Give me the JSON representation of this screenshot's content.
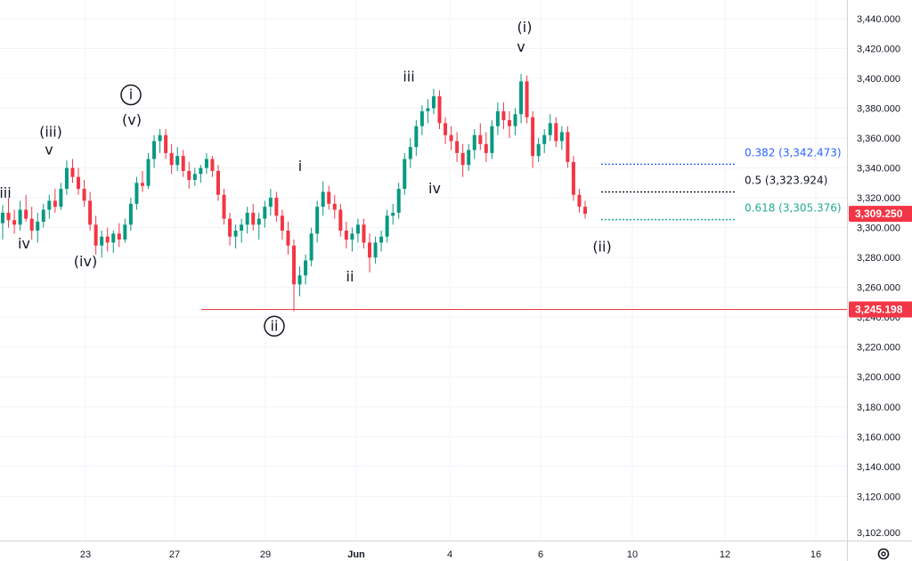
{
  "chart_data": {
    "type": "candlestick",
    "y_axis": {
      "range": [
        3095,
        3455
      ],
      "ticks": [
        3440,
        3420,
        3400,
        3380,
        3360,
        3340,
        3320,
        3300,
        3280,
        3260,
        3240,
        3220,
        3200,
        3180,
        3160,
        3140,
        3120
      ],
      "tick_labels": [
        "3,440.000",
        "3,420.000",
        "3,400.000",
        "3,380.000",
        "3,360.000",
        "3,340.000",
        "3,320.000",
        "3,300.000",
        "3,280.000",
        "3,260.000",
        "3,240.000",
        "3,220.000",
        "3,200.000",
        "3,180.000",
        "3,160.000",
        "3,140.000",
        "3,120.000"
      ],
      "bottom_label": "3,102.000"
    },
    "x_axis": {
      "labels": [
        "23",
        "27",
        "29",
        "Jun",
        "4",
        "6",
        "10",
        "12",
        "16"
      ]
    },
    "price_tags": [
      {
        "label": "3,309.250",
        "value": 3309.25,
        "color": "#f23645"
      },
      {
        "label": "3,245.198",
        "value": 3245.198,
        "color": "#f23645"
      }
    ],
    "horizontal_lines": [
      {
        "value": 3245.198,
        "color": "#f23645"
      }
    ],
    "fib_levels": [
      {
        "ratio": "0.382",
        "value": 3342.473,
        "label": "0.382 (3,342.473)",
        "color": "#2962ff"
      },
      {
        "ratio": "0.5",
        "value": 3323.924,
        "label": "0.5 (3,323.924)",
        "color": "#131722"
      },
      {
        "ratio": "0.618",
        "value": 3305.376,
        "label": "0.618 (3,305.376)",
        "color": "#22ab94"
      }
    ],
    "wave_labels": [
      {
        "text": "iii",
        "price": 3320
      },
      {
        "text": "iv",
        "price": 3286
      },
      {
        "text": "(iii)",
        "price": 3361
      },
      {
        "text": "v",
        "price": 3349
      },
      {
        "text": "(iv)",
        "price": 3274
      },
      {
        "text": "i",
        "price": 3386,
        "circled": true
      },
      {
        "text": "(v)",
        "price": 3369
      },
      {
        "text": "ii",
        "price": 3231,
        "circled": true
      },
      {
        "text": "i",
        "price": 3338
      },
      {
        "text": "ii",
        "price": 3264
      },
      {
        "text": "iii",
        "price": 3398
      },
      {
        "text": "iv",
        "price": 3323
      },
      {
        "text": "(i)",
        "price": 3431
      },
      {
        "text": "v",
        "price": 3418
      },
      {
        "text": "(ii)",
        "price": 3284
      }
    ],
    "candles": [
      {
        "o": 3303,
        "h": 3315,
        "l": 3292,
        "c": 3310
      },
      {
        "o": 3310,
        "h": 3320,
        "l": 3300,
        "c": 3305
      },
      {
        "o": 3305,
        "h": 3312,
        "l": 3296,
        "c": 3302
      },
      {
        "o": 3302,
        "h": 3318,
        "l": 3298,
        "c": 3312
      },
      {
        "o": 3312,
        "h": 3322,
        "l": 3304,
        "c": 3306
      },
      {
        "o": 3306,
        "h": 3314,
        "l": 3292,
        "c": 3298
      },
      {
        "o": 3298,
        "h": 3310,
        "l": 3290,
        "c": 3304
      },
      {
        "o": 3304,
        "h": 3316,
        "l": 3300,
        "c": 3312
      },
      {
        "o": 3312,
        "h": 3322,
        "l": 3306,
        "c": 3318
      },
      {
        "o": 3318,
        "h": 3326,
        "l": 3310,
        "c": 3314
      },
      {
        "o": 3314,
        "h": 3330,
        "l": 3312,
        "c": 3326
      },
      {
        "o": 3326,
        "h": 3345,
        "l": 3322,
        "c": 3340
      },
      {
        "o": 3340,
        "h": 3346,
        "l": 3330,
        "c": 3334
      },
      {
        "o": 3334,
        "h": 3340,
        "l": 3322,
        "c": 3326
      },
      {
        "o": 3326,
        "h": 3332,
        "l": 3314,
        "c": 3318
      },
      {
        "o": 3318,
        "h": 3324,
        "l": 3298,
        "c": 3302
      },
      {
        "o": 3302,
        "h": 3308,
        "l": 3282,
        "c": 3288
      },
      {
        "o": 3288,
        "h": 3298,
        "l": 3280,
        "c": 3294
      },
      {
        "o": 3294,
        "h": 3300,
        "l": 3284,
        "c": 3290
      },
      {
        "o": 3290,
        "h": 3298,
        "l": 3283,
        "c": 3296
      },
      {
        "o": 3296,
        "h": 3303,
        "l": 3287,
        "c": 3292
      },
      {
        "o": 3292,
        "h": 3306,
        "l": 3290,
        "c": 3302
      },
      {
        "o": 3302,
        "h": 3320,
        "l": 3298,
        "c": 3316
      },
      {
        "o": 3316,
        "h": 3334,
        "l": 3312,
        "c": 3330
      },
      {
        "o": 3330,
        "h": 3338,
        "l": 3324,
        "c": 3328
      },
      {
        "o": 3328,
        "h": 3350,
        "l": 3326,
        "c": 3346
      },
      {
        "o": 3346,
        "h": 3362,
        "l": 3340,
        "c": 3358
      },
      {
        "o": 3358,
        "h": 3366,
        "l": 3350,
        "c": 3362
      },
      {
        "o": 3362,
        "h": 3366,
        "l": 3346,
        "c": 3350
      },
      {
        "o": 3350,
        "h": 3356,
        "l": 3336,
        "c": 3342
      },
      {
        "o": 3342,
        "h": 3354,
        "l": 3338,
        "c": 3348
      },
      {
        "o": 3348,
        "h": 3352,
        "l": 3334,
        "c": 3338
      },
      {
        "o": 3338,
        "h": 3344,
        "l": 3326,
        "c": 3332
      },
      {
        "o": 3332,
        "h": 3340,
        "l": 3328,
        "c": 3336
      },
      {
        "o": 3336,
        "h": 3342,
        "l": 3330,
        "c": 3340
      },
      {
        "o": 3340,
        "h": 3350,
        "l": 3336,
        "c": 3346
      },
      {
        "o": 3346,
        "h": 3348,
        "l": 3334,
        "c": 3338
      },
      {
        "o": 3338,
        "h": 3342,
        "l": 3318,
        "c": 3322
      },
      {
        "o": 3322,
        "h": 3326,
        "l": 3302,
        "c": 3306
      },
      {
        "o": 3306,
        "h": 3310,
        "l": 3288,
        "c": 3294
      },
      {
        "o": 3294,
        "h": 3302,
        "l": 3286,
        "c": 3298
      },
      {
        "o": 3298,
        "h": 3306,
        "l": 3290,
        "c": 3302
      },
      {
        "o": 3302,
        "h": 3314,
        "l": 3296,
        "c": 3310
      },
      {
        "o": 3310,
        "h": 3316,
        "l": 3298,
        "c": 3302
      },
      {
        "o": 3302,
        "h": 3310,
        "l": 3292,
        "c": 3306
      },
      {
        "o": 3306,
        "h": 3318,
        "l": 3300,
        "c": 3314
      },
      {
        "o": 3314,
        "h": 3326,
        "l": 3308,
        "c": 3320
      },
      {
        "o": 3320,
        "h": 3324,
        "l": 3304,
        "c": 3308
      },
      {
        "o": 3308,
        "h": 3312,
        "l": 3292,
        "c": 3298
      },
      {
        "o": 3298,
        "h": 3304,
        "l": 3282,
        "c": 3288
      },
      {
        "o": 3288,
        "h": 3292,
        "l": 3244,
        "c": 3262
      },
      {
        "o": 3262,
        "h": 3274,
        "l": 3254,
        "c": 3268
      },
      {
        "o": 3268,
        "h": 3282,
        "l": 3262,
        "c": 3278
      },
      {
        "o": 3278,
        "h": 3300,
        "l": 3274,
        "c": 3296
      },
      {
        "o": 3296,
        "h": 3318,
        "l": 3290,
        "c": 3314
      },
      {
        "o": 3314,
        "h": 3331,
        "l": 3308,
        "c": 3324
      },
      {
        "o": 3324,
        "h": 3328,
        "l": 3312,
        "c": 3316
      },
      {
        "o": 3316,
        "h": 3322,
        "l": 3306,
        "c": 3312
      },
      {
        "o": 3312,
        "h": 3316,
        "l": 3294,
        "c": 3298
      },
      {
        "o": 3298,
        "h": 3304,
        "l": 3286,
        "c": 3292
      },
      {
        "o": 3292,
        "h": 3300,
        "l": 3284,
        "c": 3296
      },
      {
        "o": 3296,
        "h": 3306,
        "l": 3290,
        "c": 3302
      },
      {
        "o": 3302,
        "h": 3306,
        "l": 3286,
        "c": 3290
      },
      {
        "o": 3290,
        "h": 3296,
        "l": 3270,
        "c": 3280
      },
      {
        "o": 3280,
        "h": 3294,
        "l": 3276,
        "c": 3290
      },
      {
        "o": 3290,
        "h": 3298,
        "l": 3284,
        "c": 3294
      },
      {
        "o": 3294,
        "h": 3312,
        "l": 3290,
        "c": 3308
      },
      {
        "o": 3308,
        "h": 3316,
        "l": 3302,
        "c": 3310
      },
      {
        "o": 3310,
        "h": 3330,
        "l": 3306,
        "c": 3326
      },
      {
        "o": 3326,
        "h": 3350,
        "l": 3322,
        "c": 3346
      },
      {
        "o": 3346,
        "h": 3360,
        "l": 3340,
        "c": 3354
      },
      {
        "o": 3354,
        "h": 3372,
        "l": 3348,
        "c": 3368
      },
      {
        "o": 3368,
        "h": 3382,
        "l": 3362,
        "c": 3378
      },
      {
        "o": 3378,
        "h": 3386,
        "l": 3370,
        "c": 3380
      },
      {
        "o": 3380,
        "h": 3393,
        "l": 3376,
        "c": 3388
      },
      {
        "o": 3388,
        "h": 3392,
        "l": 3366,
        "c": 3370
      },
      {
        "o": 3370,
        "h": 3374,
        "l": 3356,
        "c": 3362
      },
      {
        "o": 3362,
        "h": 3368,
        "l": 3352,
        "c": 3358
      },
      {
        "o": 3358,
        "h": 3364,
        "l": 3344,
        "c": 3350
      },
      {
        "o": 3350,
        "h": 3356,
        "l": 3334,
        "c": 3342
      },
      {
        "o": 3342,
        "h": 3356,
        "l": 3338,
        "c": 3352
      },
      {
        "o": 3352,
        "h": 3366,
        "l": 3346,
        "c": 3362
      },
      {
        "o": 3362,
        "h": 3370,
        "l": 3352,
        "c": 3356
      },
      {
        "o": 3356,
        "h": 3364,
        "l": 3344,
        "c": 3350
      },
      {
        "o": 3350,
        "h": 3372,
        "l": 3346,
        "c": 3368
      },
      {
        "o": 3368,
        "h": 3384,
        "l": 3362,
        "c": 3378
      },
      {
        "o": 3378,
        "h": 3384,
        "l": 3366,
        "c": 3372
      },
      {
        "o": 3372,
        "h": 3378,
        "l": 3360,
        "c": 3368
      },
      {
        "o": 3368,
        "h": 3380,
        "l": 3362,
        "c": 3376
      },
      {
        "o": 3376,
        "h": 3403,
        "l": 3370,
        "c": 3398
      },
      {
        "o": 3398,
        "h": 3402,
        "l": 3370,
        "c": 3374
      },
      {
        "o": 3374,
        "h": 3378,
        "l": 3340,
        "c": 3348
      },
      {
        "o": 3348,
        "h": 3360,
        "l": 3344,
        "c": 3356
      },
      {
        "o": 3356,
        "h": 3366,
        "l": 3350,
        "c": 3362
      },
      {
        "o": 3362,
        "h": 3376,
        "l": 3358,
        "c": 3370
      },
      {
        "o": 3370,
        "h": 3374,
        "l": 3354,
        "c": 3358
      },
      {
        "o": 3358,
        "h": 3368,
        "l": 3352,
        "c": 3364
      },
      {
        "o": 3364,
        "h": 3368,
        "l": 3340,
        "c": 3344
      },
      {
        "o": 3344,
        "h": 3348,
        "l": 3318,
        "c": 3322
      },
      {
        "o": 3322,
        "h": 3326,
        "l": 3310,
        "c": 3314
      },
      {
        "o": 3314,
        "h": 3318,
        "l": 3306,
        "c": 3309.25
      }
    ]
  }
}
